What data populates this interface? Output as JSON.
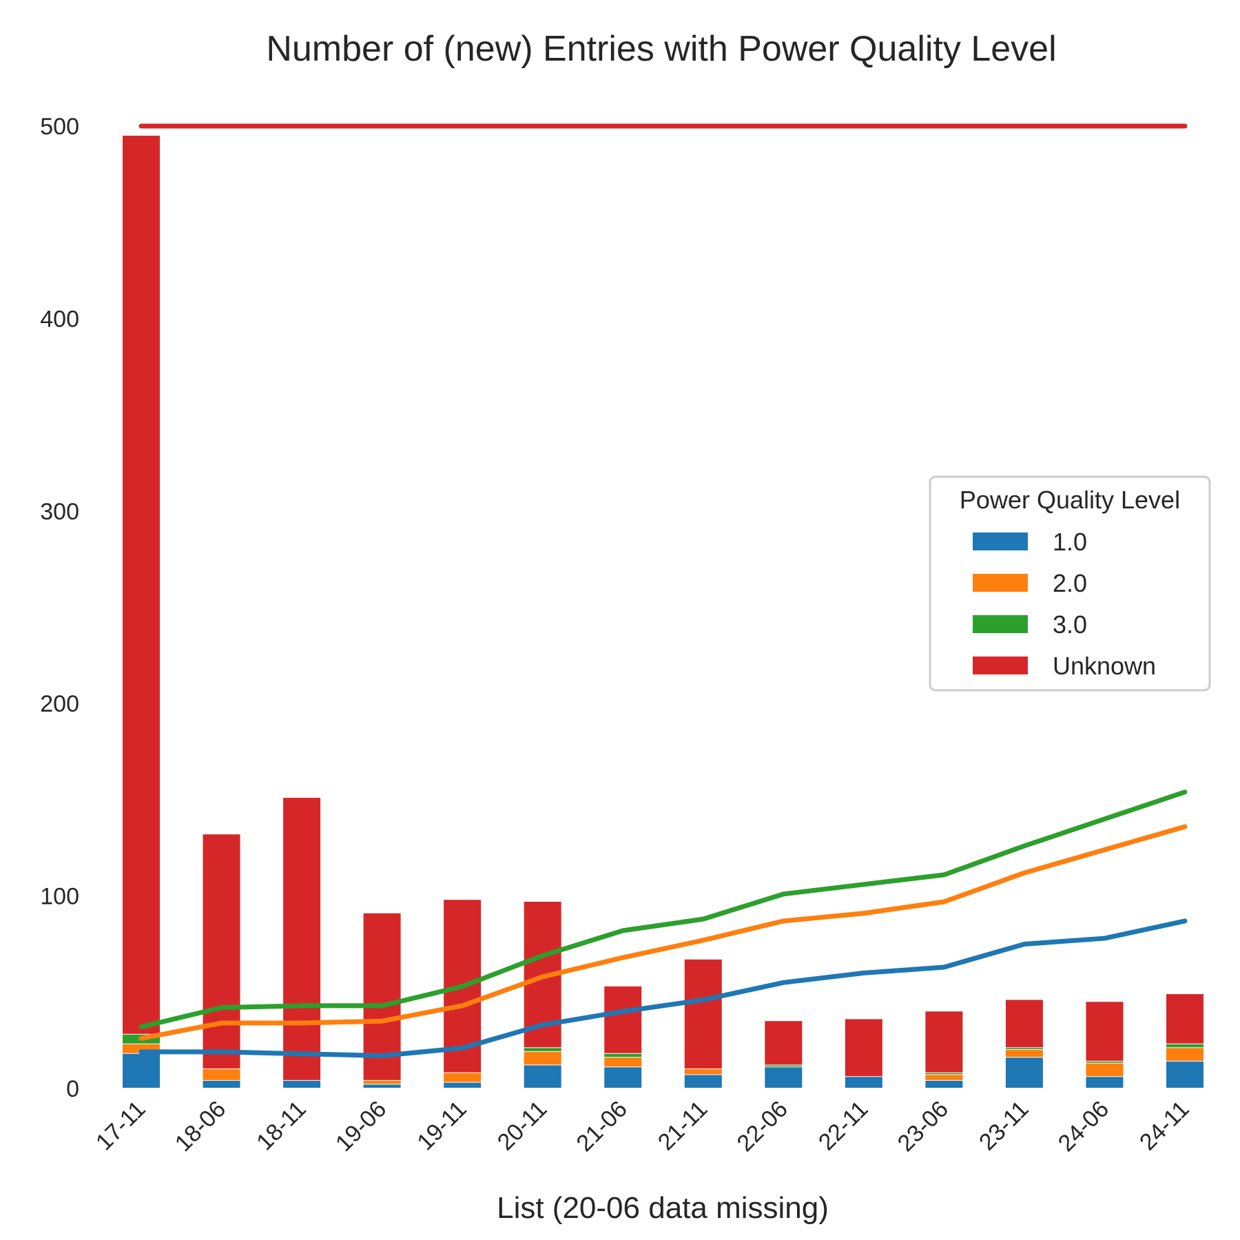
{
  "chart_data": {
    "type": "bar",
    "title": "Number of (new) Entries with Power Quality Level",
    "xlabel": "List (20-06 data missing)",
    "ylabel": "",
    "ylim": [
      0,
      500
    ],
    "yticks": [
      0,
      100,
      200,
      300,
      400,
      500
    ],
    "categories": [
      "17-11",
      "18-06",
      "18-11",
      "19-06",
      "19-11",
      "20-11",
      "21-06",
      "21-11",
      "22-06",
      "22-11",
      "23-06",
      "23-11",
      "24-06",
      "24-11"
    ],
    "legend": {
      "title": "Power Quality Level",
      "position": "center-right"
    },
    "grid": false,
    "colors": {
      "1.0": "#1f77b4",
      "2.0": "#ff7f0e",
      "3.0": "#2ca02c",
      "Unknown": "#d62728"
    },
    "bar_series": [
      {
        "name": "1.0",
        "values": [
          18,
          4,
          4,
          2,
          3,
          12,
          11,
          7,
          11,
          6,
          4,
          16,
          6,
          14
        ]
      },
      {
        "name": "2.0",
        "values": [
          5,
          6,
          0,
          2,
          5,
          7,
          5,
          3,
          0,
          0,
          3,
          4,
          7,
          7
        ]
      },
      {
        "name": "3.0",
        "values": [
          5,
          0,
          0,
          0,
          0,
          2,
          2,
          0,
          1,
          0,
          1,
          1,
          1,
          2
        ]
      },
      {
        "name": "Unknown",
        "values": [
          467,
          122,
          147,
          87,
          90,
          76,
          35,
          57,
          23,
          30,
          32,
          25,
          31,
          26
        ]
      }
    ],
    "line_series": [
      {
        "name": "1.0",
        "values": [
          19,
          19,
          18,
          17,
          21,
          33,
          40,
          46,
          55,
          60,
          63,
          75,
          78,
          87
        ]
      },
      {
        "name": "2.0",
        "values": [
          26,
          34,
          34,
          35,
          43,
          58,
          68,
          77,
          87,
          91,
          97,
          112,
          124,
          136
        ]
      },
      {
        "name": "3.0",
        "values": [
          32,
          42,
          43,
          43,
          53,
          69,
          82,
          88,
          101,
          106,
          111,
          126,
          140,
          154
        ]
      },
      {
        "name": "Unknown",
        "values": [
          500,
          500,
          500,
          500,
          500,
          500,
          500,
          500,
          500,
          500,
          500,
          500,
          500,
          500
        ]
      }
    ]
  }
}
